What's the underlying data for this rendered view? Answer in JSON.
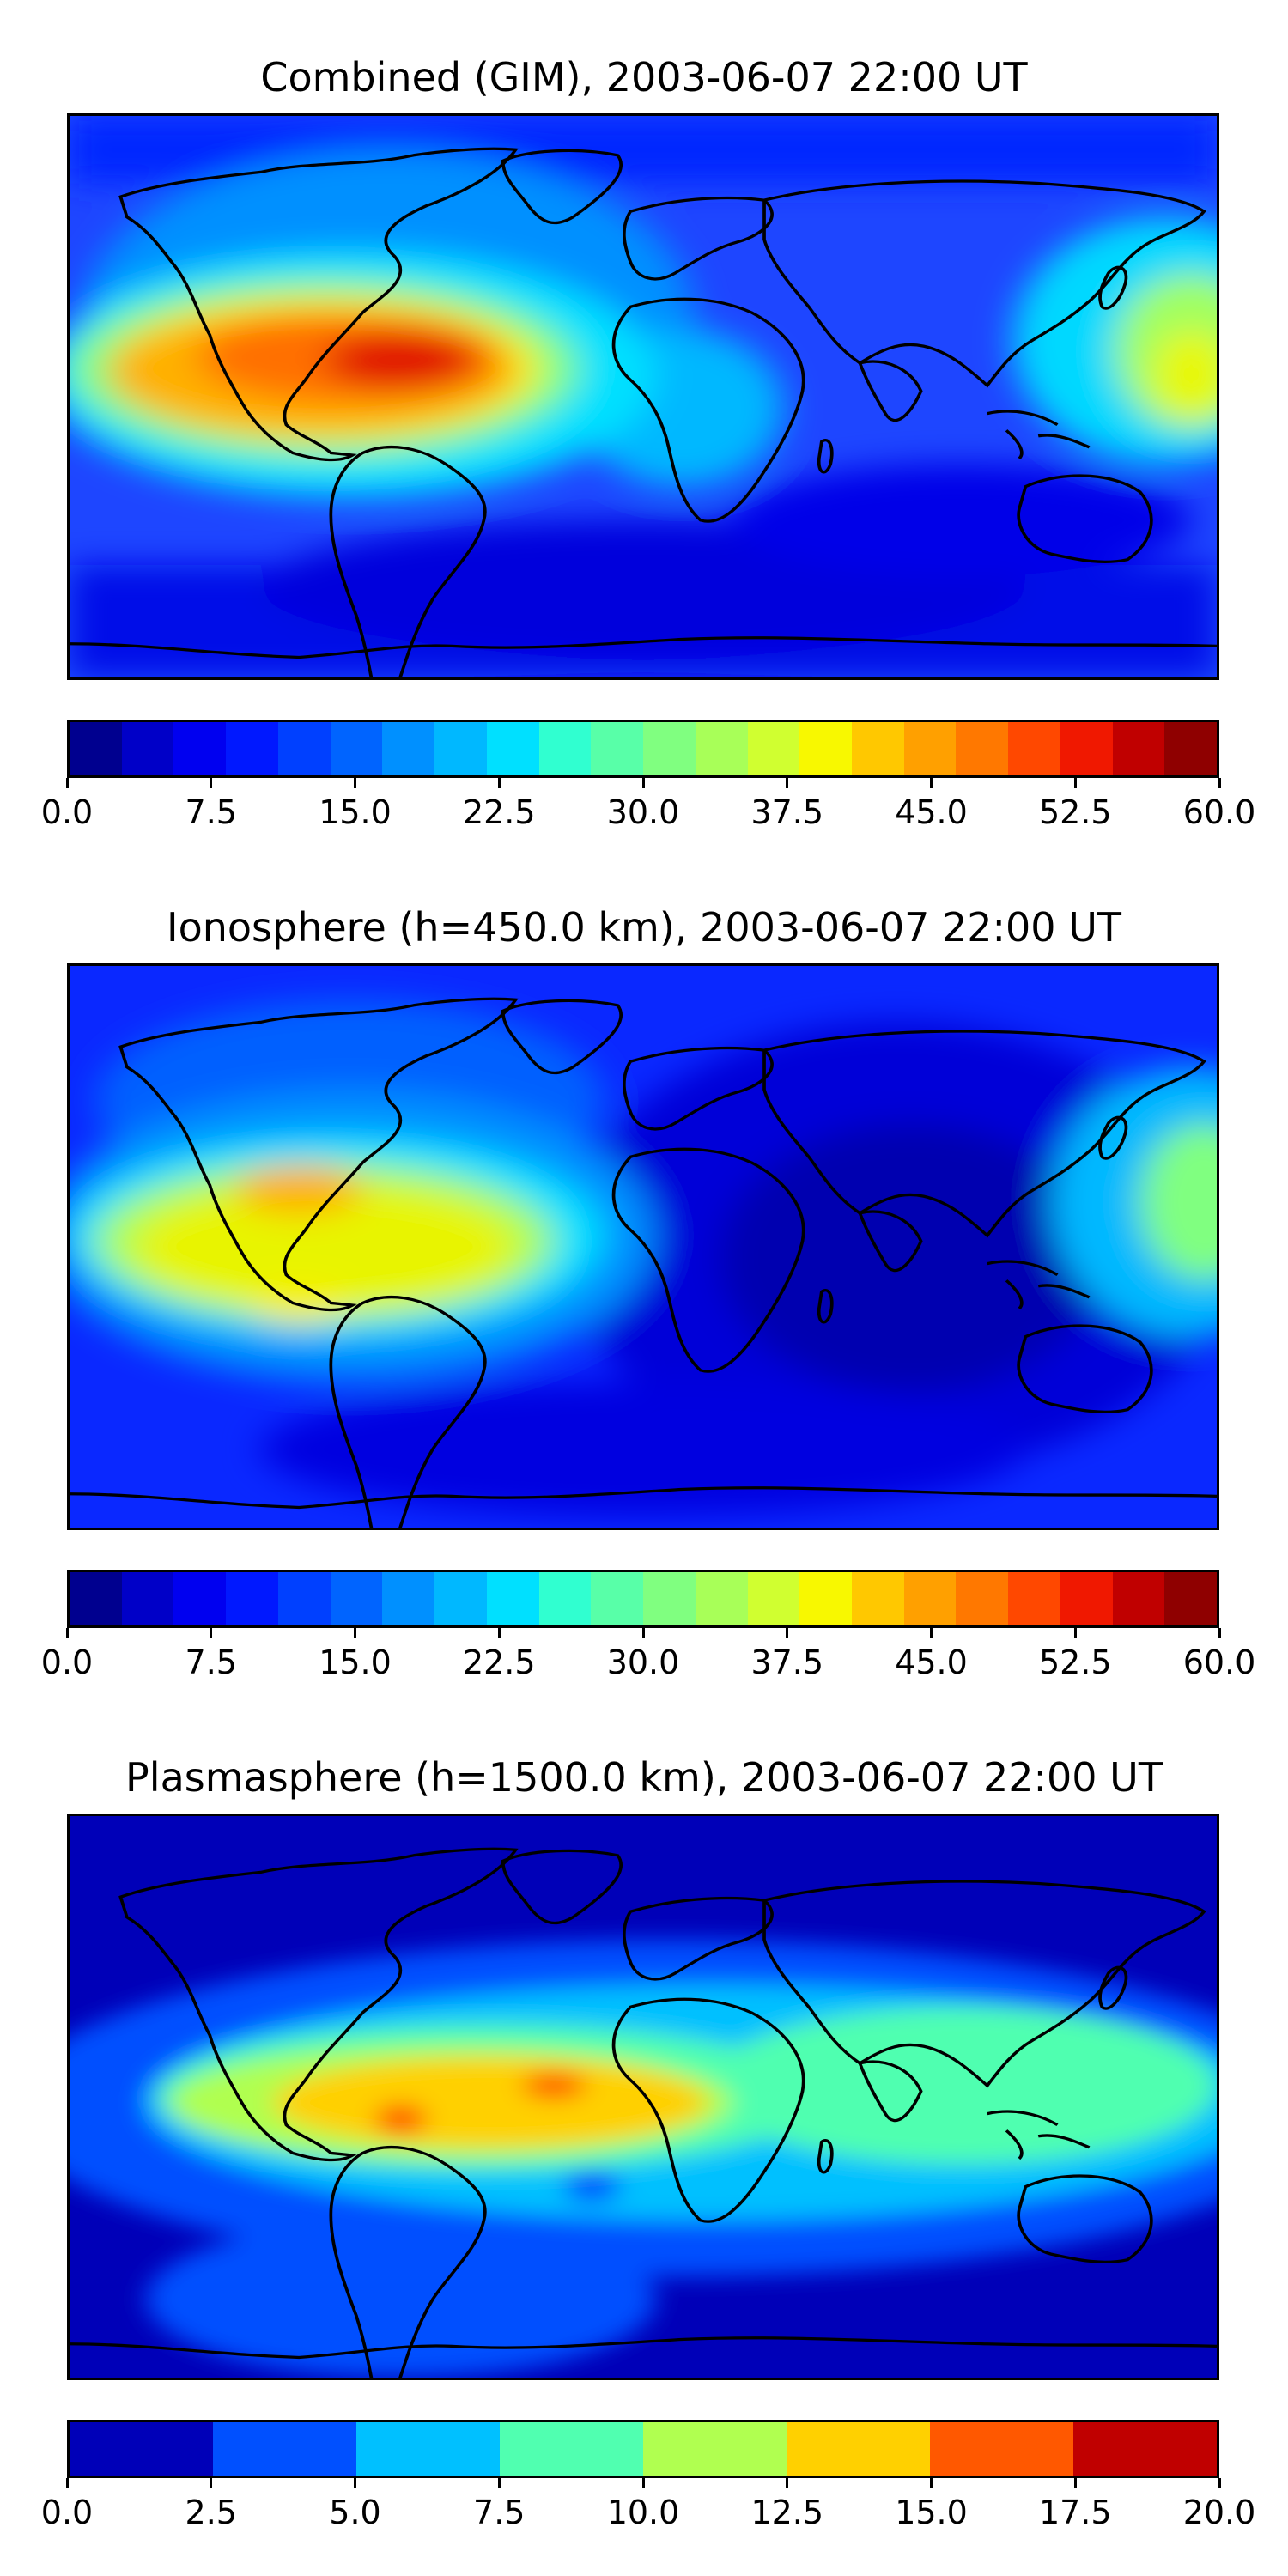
{
  "panels": [
    {
      "title": "Combined (GIM), 2003-06-07 22:00 UT",
      "colorbar": {
        "ticks": [
          "0.0",
          "7.5",
          "15.0",
          "22.5",
          "30.0",
          "37.5",
          "45.0",
          "52.5",
          "60.0"
        ],
        "colors": [
          "#00008f",
          "#0000c8",
          "#0000f0",
          "#0018ff",
          "#0040ff",
          "#0064ff",
          "#0090ff",
          "#00b8ff",
          "#00e0ff",
          "#30ffd0",
          "#58ffa8",
          "#80ff80",
          "#a8ff58",
          "#d0ff30",
          "#f8f800",
          "#ffc800",
          "#ffa000",
          "#ff7800",
          "#ff4800",
          "#f01800",
          "#c00000",
          "#8f0000"
        ]
      },
      "chart_data": {
        "type": "heatmap",
        "value_range": [
          0,
          60
        ],
        "colormap": "jet",
        "levels": 22
      }
    },
    {
      "title": "Ionosphere  (h=450.0 km), 2003-06-07 22:00 UT",
      "colorbar": {
        "ticks": [
          "0.0",
          "7.5",
          "15.0",
          "22.5",
          "30.0",
          "37.5",
          "45.0",
          "52.5",
          "60.0"
        ],
        "colors": [
          "#00008f",
          "#0000c8",
          "#0000f0",
          "#0018ff",
          "#0040ff",
          "#0064ff",
          "#0090ff",
          "#00b8ff",
          "#00e0ff",
          "#30ffd0",
          "#58ffa8",
          "#80ff80",
          "#a8ff58",
          "#d0ff30",
          "#f8f800",
          "#ffc800",
          "#ffa000",
          "#ff7800",
          "#ff4800",
          "#f01800",
          "#c00000",
          "#8f0000"
        ]
      },
      "chart_data": {
        "type": "heatmap",
        "value_range": [
          0,
          60
        ],
        "colormap": "jet",
        "levels": 22
      }
    },
    {
      "title": "Plasmasphere (h=1500.0 km), 2003-06-07 22:00 UT",
      "colorbar": {
        "ticks": [
          "0.0",
          "2.5",
          "5.0",
          "7.5",
          "10.0",
          "12.5",
          "15.0",
          "17.5",
          "20.0"
        ],
        "colors": [
          "#0000b8",
          "#0050ff",
          "#00c0ff",
          "#50ffb0",
          "#b0ff50",
          "#ffd000",
          "#ff5800",
          "#c00000"
        ]
      },
      "chart_data": {
        "type": "heatmap",
        "value_range": [
          0,
          20
        ],
        "colormap": "jet",
        "levels": 8
      }
    }
  ]
}
